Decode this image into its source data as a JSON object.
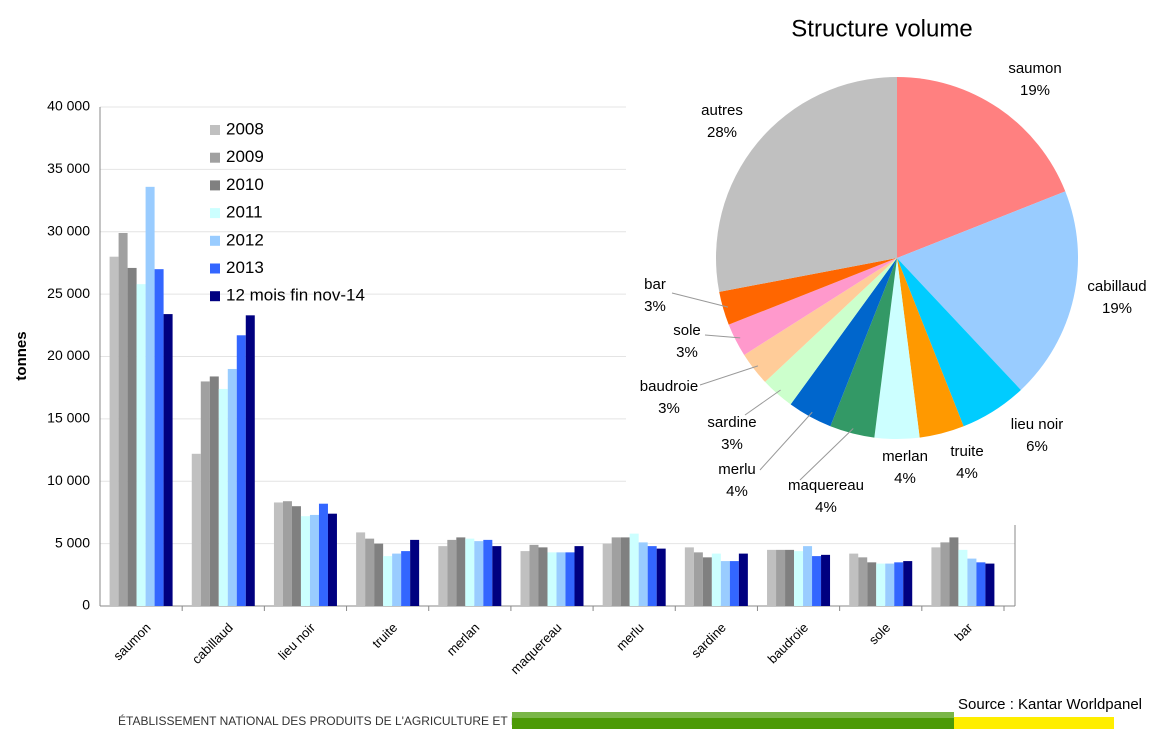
{
  "chart_data": [
    {
      "type": "bar",
      "ylabel": "tonnes",
      "categories": [
        "saumon",
        "cabillaud",
        "lieu noir",
        "truite",
        "merlan",
        "maquereau",
        "merlu",
        "sardine",
        "baudroie",
        "sole",
        "bar"
      ],
      "series": [
        {
          "name": "2008",
          "color": "#c0c0c0",
          "values": [
            28000,
            12200,
            8300,
            5900,
            4800,
            4400,
            5000,
            4700,
            4500,
            4200,
            4700
          ]
        },
        {
          "name": "2009",
          "color": "#a0a0a0",
          "values": [
            29900,
            18000,
            8400,
            5400,
            5300,
            4900,
            5500,
            4300,
            4500,
            3900,
            5100
          ]
        },
        {
          "name": "2010",
          "color": "#808080",
          "values": [
            27100,
            18400,
            8000,
            5000,
            5500,
            4700,
            5500,
            3900,
            4500,
            3500,
            5500
          ]
        },
        {
          "name": "2011",
          "color": "#ccffff",
          "values": [
            25800,
            17400,
            7200,
            4000,
            5400,
            4300,
            5800,
            4200,
            4400,
            3400,
            4500
          ]
        },
        {
          "name": "2012",
          "color": "#99ccff",
          "values": [
            33600,
            19000,
            7300,
            4200,
            5200,
            4300,
            5100,
            3600,
            4800,
            3400,
            3800
          ]
        },
        {
          "name": "2013",
          "color": "#3366ff",
          "values": [
            27000,
            21700,
            8200,
            4400,
            5300,
            4300,
            4800,
            3600,
            4000,
            3500,
            3500
          ]
        },
        {
          "name": "12 mois fin nov-14",
          "color": "#000080",
          "values": [
            23400,
            23300,
            7400,
            5300,
            4800,
            4800,
            4600,
            4200,
            4100,
            3600,
            3400
          ]
        }
      ],
      "ylim": [
        0,
        40000
      ],
      "yticks": [
        0,
        {
          "value": 5000,
          "label": "5 000"
        },
        {
          "value": 10000,
          "label": "10 000"
        },
        {
          "value": 15000,
          "label": "15 000"
        },
        {
          "value": 20000,
          "label": "20 000"
        },
        {
          "value": 25000,
          "label": "25 000"
        },
        {
          "value": 30000,
          "label": "30 000"
        },
        {
          "value": 35000,
          "label": "35 000"
        },
        {
          "value": 40000,
          "label": "40 000"
        }
      ],
      "grid": true
    },
    {
      "type": "pie",
      "title": "Structure volume",
      "categories": [
        "saumon",
        "cabillaud",
        "lieu noir",
        "truite",
        "merlan",
        "maquereau",
        "merlu",
        "sardine",
        "baudroie",
        "sole",
        "bar",
        "autres"
      ],
      "values": [
        19,
        19,
        6,
        4,
        4,
        4,
        4,
        3,
        3,
        3,
        3,
        28
      ],
      "value_labels": [
        "19%",
        "19%",
        "6%",
        "4%",
        "4%",
        "4%",
        "4%",
        "3%",
        "3%",
        "3%",
        "3%",
        "28%"
      ],
      "colors": [
        "#ff8080",
        "#99ccff",
        "#00ccff",
        "#ff9900",
        "#ccffff",
        "#339966",
        "#0066cc",
        "#ccffcc",
        "#ffcc99",
        "#ff99cc",
        "#ff6600",
        "#c0c0c0"
      ]
    }
  ],
  "footer": {
    "organization": "ÉTABLISSEMENT NATIONAL DES PRODUITS DE L'AGRICULTURE ET DE LA MER",
    "source": "Source : Kantar Worldpanel"
  }
}
